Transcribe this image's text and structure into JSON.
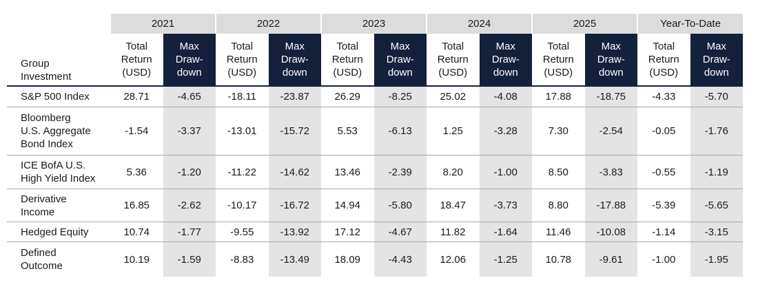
{
  "chart_data": {
    "type": "table",
    "row_header": [
      "Group",
      "Investment"
    ],
    "years": [
      "2021",
      "2022",
      "2023",
      "2024",
      "2025",
      "Year-To-Date"
    ],
    "sub_headers": [
      [
        "Total",
        "Return",
        "(USD)"
      ],
      [
        "Max",
        "Draw-",
        "down"
      ]
    ],
    "rows": [
      {
        "name": [
          "S&P 500 Index"
        ],
        "values": [
          "28.71",
          "-4.65",
          "-18.11",
          "-23.87",
          "26.29",
          "-8.25",
          "25.02",
          "-4.08",
          "17.88",
          "-18.75",
          "-4.33",
          "-5.70"
        ]
      },
      {
        "name": [
          "Bloomberg",
          "U.S. Aggregate",
          "Bond Index"
        ],
        "values": [
          "-1.54",
          "-3.37",
          "-13.01",
          "-15.72",
          "5.53",
          "-6.13",
          "1.25",
          "-3.28",
          "7.30",
          "-2.54",
          "-0.05",
          "-1.76"
        ]
      },
      {
        "name": [
          "ICE BofA U.S.",
          "High Yield Index"
        ],
        "values": [
          "5.36",
          "-1.20",
          "-11.22",
          "-14.62",
          "13.46",
          "-2.39",
          "8.20",
          "-1.00",
          "8.50",
          "-3.83",
          "-0.55",
          "-1.19"
        ]
      },
      {
        "name": [
          "Derivative",
          "Income"
        ],
        "values": [
          "16.85",
          "-2.62",
          "-10.17",
          "-16.72",
          "14.94",
          "-5.80",
          "18.47",
          "-3.73",
          "8.80",
          "-17.88",
          "-5.39",
          "-5.65"
        ]
      },
      {
        "name": [
          "Hedged Equity"
        ],
        "values": [
          "10.74",
          "-1.77",
          "-9.55",
          "-13.92",
          "17.12",
          "-4.67",
          "11.82",
          "-1.64",
          "11.46",
          "-10.08",
          "-1.14",
          "-3.15"
        ]
      },
      {
        "name": [
          "Defined",
          "Outcome"
        ],
        "values": [
          "10.19",
          "-1.59",
          "-8.83",
          "-13.49",
          "18.09",
          "-4.43",
          "12.06",
          "-1.25",
          "10.78",
          "-9.61",
          "-1.00",
          "-1.95"
        ]
      }
    ]
  },
  "colors": {
    "header_navy": "#14213d",
    "year_band": "#dcdcdc",
    "drawdown_cell": "#e4e4e4",
    "row_rule": "#a8a8a8"
  }
}
